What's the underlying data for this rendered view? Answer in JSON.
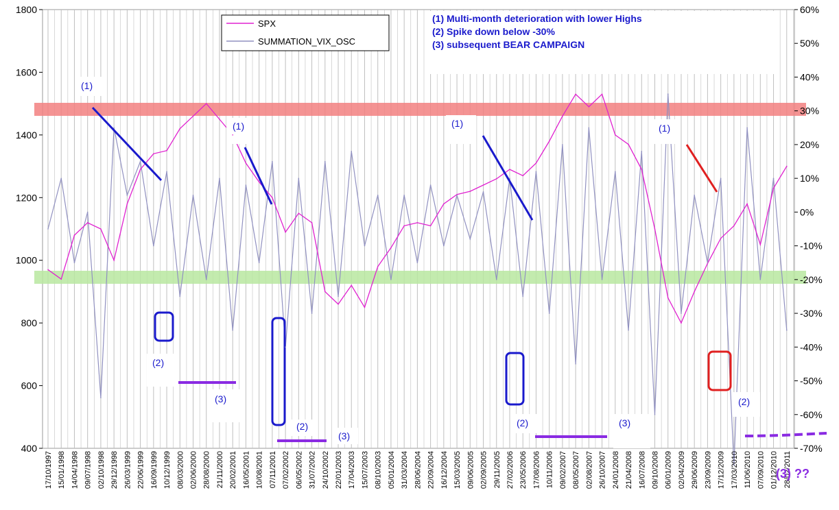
{
  "chart_data": {
    "type": "line",
    "legend": {
      "placement": "top-left",
      "entries": [
        "SPX",
        "SUMMATION_VIX_OSC"
      ]
    },
    "colors": {
      "spx": "#e020d0",
      "osc": "#9090c0",
      "red_band": "#f28080",
      "green_band": "#b8e8a0",
      "blue": "#1a1acc",
      "purple": "#8a2be2",
      "red": "#e02020",
      "grid": "#bfbfbf"
    },
    "y_left": {
      "range": [
        400,
        1800
      ],
      "ticks": [
        "400",
        "600",
        "800",
        "1000",
        "1200",
        "1400",
        "1600",
        "1800"
      ]
    },
    "y_right": {
      "range": [
        -70,
        60
      ],
      "ticks": [
        "-70%",
        "-60%",
        "-50%",
        "-40%",
        "-30%",
        "-20%",
        "-10%",
        "0%",
        "10%",
        "20%",
        "30%",
        "40%",
        "50%",
        "60%"
      ]
    },
    "x_ticks": [
      "17/10/1997",
      "15/01/1998",
      "14/04/1998",
      "09/07/1998",
      "02/10/1998",
      "29/12/1998",
      "26/03/1999",
      "22/06/1999",
      "16/09/1999",
      "10/12/1999",
      "08/03/2000",
      "02/06/2000",
      "28/08/2000",
      "21/11/2000",
      "20/02/2001",
      "16/05/2001",
      "10/08/2001",
      "07/11/2001",
      "07/02/2002",
      "06/05/2002",
      "31/07/2002",
      "24/10/2002",
      "22/01/2003",
      "17/04/2003",
      "15/07/2003",
      "08/10/2003",
      "05/01/2004",
      "31/03/2004",
      "28/06/2004",
      "22/09/2004",
      "16/12/2004",
      "15/03/2005",
      "09/06/2005",
      "02/09/2005",
      "29/11/2005",
      "27/02/2006",
      "23/05/2006",
      "17/08/2006",
      "10/11/2006",
      "09/02/2007",
      "08/05/2007",
      "02/08/2007",
      "26/10/2007",
      "24/01/2008",
      "21/04/2008",
      "16/07/2008",
      "09/10/2008",
      "06/01/2009",
      "02/04/2009",
      "29/06/2009",
      "23/09/2009",
      "17/12/2009",
      "17/03/2010",
      "11/06/2010",
      "07/09/2010",
      "01/12/2010",
      "28/02/2011"
    ],
    "spx_series": {
      "name": "SPX",
      "points": [
        [
          0,
          970
        ],
        [
          1,
          940
        ],
        [
          2,
          1080
        ],
        [
          3,
          1120
        ],
        [
          4,
          1100
        ],
        [
          5,
          1000
        ],
        [
          6,
          1180
        ],
        [
          7,
          1290
        ],
        [
          8,
          1340
        ],
        [
          9,
          1350
        ],
        [
          10,
          1420
        ],
        [
          11,
          1460
        ],
        [
          12,
          1500
        ],
        [
          13,
          1450
        ],
        [
          14,
          1400
        ],
        [
          15,
          1310
        ],
        [
          16,
          1250
        ],
        [
          17,
          1200
        ],
        [
          18,
          1090
        ],
        [
          19,
          1150
        ],
        [
          20,
          1120
        ],
        [
          21,
          900
        ],
        [
          22,
          860
        ],
        [
          23,
          920
        ],
        [
          24,
          850
        ],
        [
          25,
          980
        ],
        [
          26,
          1040
        ],
        [
          27,
          1110
        ],
        [
          28,
          1120
        ],
        [
          29,
          1110
        ],
        [
          30,
          1180
        ],
        [
          31,
          1210
        ],
        [
          32,
          1220
        ],
        [
          33,
          1240
        ],
        [
          34,
          1260
        ],
        [
          35,
          1290
        ],
        [
          36,
          1270
        ],
        [
          37,
          1310
        ],
        [
          38,
          1380
        ],
        [
          39,
          1460
        ],
        [
          40,
          1530
        ],
        [
          41,
          1490
        ],
        [
          42,
          1530
        ],
        [
          43,
          1400
        ],
        [
          44,
          1370
        ],
        [
          45,
          1290
        ],
        [
          46,
          1100
        ],
        [
          47,
          880
        ],
        [
          48,
          800
        ],
        [
          49,
          900
        ],
        [
          50,
          990
        ],
        [
          51,
          1070
        ],
        [
          52,
          1110
        ],
        [
          53,
          1180
        ],
        [
          54,
          1050
        ],
        [
          55,
          1230
        ],
        [
          56,
          1300
        ]
      ]
    },
    "osc_series": {
      "name": "SUMMATION_VIX_OSC",
      "points": [
        [
          0,
          -5
        ],
        [
          1,
          10
        ],
        [
          2,
          -15
        ],
        [
          3,
          0
        ],
        [
          4,
          -55
        ],
        [
          5,
          25
        ],
        [
          6,
          5
        ],
        [
          7,
          15
        ],
        [
          8,
          -10
        ],
        [
          9,
          12
        ],
        [
          10,
          -25
        ],
        [
          11,
          5
        ],
        [
          12,
          -20
        ],
        [
          13,
          10
        ],
        [
          14,
          -35
        ],
        [
          15,
          8
        ],
        [
          16,
          -15
        ],
        [
          17,
          15
        ],
        [
          18,
          -40
        ],
        [
          19,
          10
        ],
        [
          20,
          -30
        ],
        [
          21,
          15
        ],
        [
          22,
          -25
        ],
        [
          23,
          18
        ],
        [
          24,
          -10
        ],
        [
          25,
          5
        ],
        [
          26,
          -20
        ],
        [
          27,
          5
        ],
        [
          28,
          -15
        ],
        [
          29,
          8
        ],
        [
          30,
          -10
        ],
        [
          31,
          5
        ],
        [
          32,
          -8
        ],
        [
          33,
          6
        ],
        [
          34,
          -20
        ],
        [
          35,
          10
        ],
        [
          36,
          -25
        ],
        [
          37,
          12
        ],
        [
          38,
          -30
        ],
        [
          39,
          20
        ],
        [
          40,
          -45
        ],
        [
          41,
          25
        ],
        [
          42,
          -20
        ],
        [
          43,
          12
        ],
        [
          44,
          -35
        ],
        [
          45,
          18
        ],
        [
          46,
          -60
        ],
        [
          47,
          35
        ],
        [
          48,
          -30
        ],
        [
          49,
          5
        ],
        [
          50,
          -15
        ],
        [
          51,
          10
        ],
        [
          52,
          -75
        ],
        [
          53,
          25
        ],
        [
          54,
          -20
        ],
        [
          55,
          10
        ],
        [
          56,
          -35
        ]
      ]
    },
    "annotations": {
      "notes": [
        "(1) Multi-month deterioration with lower Highs",
        "(2) Spike down below -30%",
        "(3) subsequent BEAR CAMPAIGN"
      ],
      "marker1": "(1)",
      "marker2": "(2)",
      "marker3": "(3)",
      "question": "(3) ??"
    }
  }
}
